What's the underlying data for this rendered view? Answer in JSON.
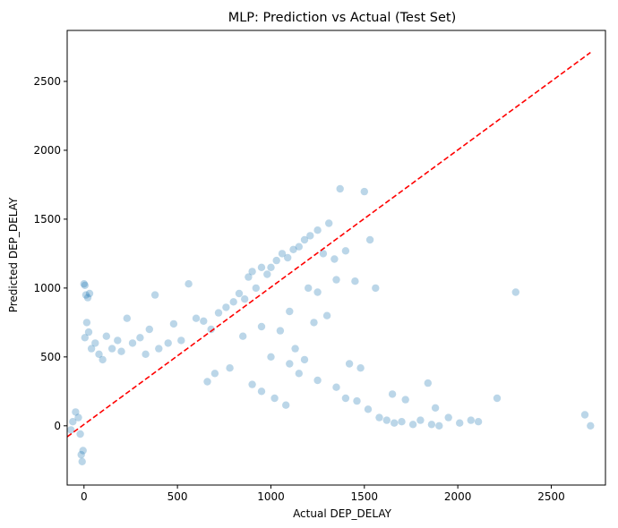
{
  "chart_data": {
    "type": "scatter",
    "title": "MLP: Prediction vs Actual (Test Set)",
    "xlabel": "Actual DEP_DELAY",
    "ylabel": "Predicted DEP_DELAY",
    "xlim": [
      -90,
      2790
    ],
    "ylim": [
      -430,
      2870
    ],
    "xticks": [
      0,
      500,
      1000,
      1500,
      2000,
      2500
    ],
    "yticks": [
      0,
      500,
      1000,
      1500,
      2000,
      2500
    ],
    "grid": false,
    "series": [
      {
        "marker": "circle",
        "color": "#1f77b4",
        "alpha": 0.3,
        "points": [
          [
            -70,
            -30
          ],
          [
            -60,
            30
          ],
          [
            -45,
            100
          ],
          [
            -30,
            60
          ],
          [
            -20,
            -60
          ],
          [
            -15,
            -210
          ],
          [
            -10,
            -260
          ],
          [
            -5,
            -180
          ],
          [
            0,
            1030
          ],
          [
            5,
            1020
          ],
          [
            10,
            950
          ],
          [
            20,
            930
          ],
          [
            30,
            960
          ],
          [
            15,
            750
          ],
          [
            25,
            680
          ],
          [
            5,
            640
          ],
          [
            40,
            560
          ],
          [
            60,
            600
          ],
          [
            80,
            520
          ],
          [
            100,
            480
          ],
          [
            120,
            650
          ],
          [
            150,
            560
          ],
          [
            180,
            620
          ],
          [
            200,
            540
          ],
          [
            230,
            780
          ],
          [
            260,
            600
          ],
          [
            300,
            640
          ],
          [
            330,
            520
          ],
          [
            350,
            700
          ],
          [
            380,
            950
          ],
          [
            400,
            560
          ],
          [
            450,
            600
          ],
          [
            480,
            740
          ],
          [
            520,
            620
          ],
          [
            560,
            1030
          ],
          [
            600,
            780
          ],
          [
            640,
            760
          ],
          [
            680,
            700
          ],
          [
            720,
            820
          ],
          [
            760,
            860
          ],
          [
            800,
            900
          ],
          [
            830,
            960
          ],
          [
            860,
            920
          ],
          [
            880,
            1080
          ],
          [
            900,
            1120
          ],
          [
            920,
            1000
          ],
          [
            950,
            1150
          ],
          [
            980,
            1100
          ],
          [
            1000,
            1150
          ],
          [
            1030,
            1200
          ],
          [
            1060,
            1250
          ],
          [
            1090,
            1220
          ],
          [
            1120,
            1280
          ],
          [
            1150,
            1300
          ],
          [
            1180,
            1350
          ],
          [
            1210,
            1380
          ],
          [
            1250,
            1420
          ],
          [
            1280,
            1250
          ],
          [
            1310,
            1470
          ],
          [
            1340,
            1210
          ],
          [
            1370,
            1720
          ],
          [
            1400,
            1270
          ],
          [
            1500,
            1700
          ],
          [
            1530,
            1350
          ],
          [
            1350,
            1060
          ],
          [
            1450,
            1050
          ],
          [
            1560,
            1000
          ],
          [
            1200,
            1000
          ],
          [
            1250,
            970
          ],
          [
            1100,
            830
          ],
          [
            1300,
            800
          ],
          [
            1230,
            750
          ],
          [
            1420,
            450
          ],
          [
            1480,
            420
          ],
          [
            1650,
            230
          ],
          [
            1720,
            190
          ],
          [
            1840,
            310
          ],
          [
            1880,
            130
          ],
          [
            1950,
            60
          ],
          [
            2010,
            20
          ],
          [
            2070,
            40
          ],
          [
            2110,
            30
          ],
          [
            2210,
            200
          ],
          [
            2310,
            970
          ],
          [
            2680,
            80
          ],
          [
            2710,
            0
          ],
          [
            1000,
            500
          ],
          [
            1100,
            450
          ],
          [
            1150,
            380
          ],
          [
            1250,
            330
          ],
          [
            1350,
            280
          ],
          [
            1400,
            200
          ],
          [
            1460,
            180
          ],
          [
            1520,
            120
          ],
          [
            1580,
            60
          ],
          [
            1620,
            40
          ],
          [
            1660,
            20
          ],
          [
            1700,
            30
          ],
          [
            1760,
            10
          ],
          [
            1800,
            40
          ],
          [
            1860,
            10
          ],
          [
            1900,
            0
          ],
          [
            950,
            720
          ],
          [
            1050,
            690
          ],
          [
            1130,
            560
          ],
          [
            1180,
            480
          ],
          [
            850,
            650
          ],
          [
            780,
            420
          ],
          [
            700,
            380
          ],
          [
            660,
            320
          ],
          [
            900,
            300
          ],
          [
            950,
            250
          ],
          [
            1020,
            200
          ],
          [
            1080,
            150
          ]
        ]
      },
      {
        "name": "",
        "line": [
          [
            -90,
            -80
          ],
          [
            2710,
            2710
          ]
        ],
        "color": "#ff0000",
        "dash": "dashed"
      }
    ]
  }
}
